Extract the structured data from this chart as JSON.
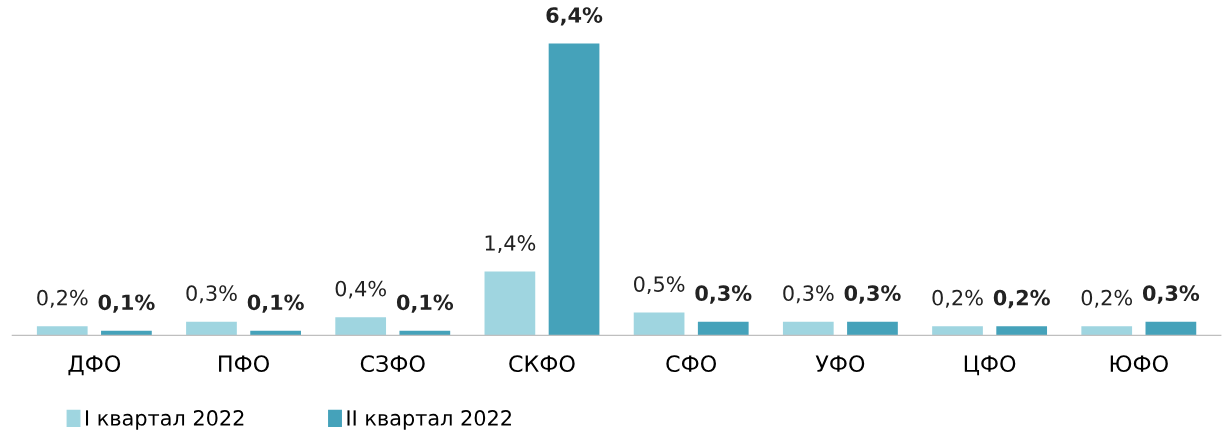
{
  "chart_data": {
    "type": "bar",
    "categories": [
      "ДФО",
      "ПФО",
      "СЗФО",
      "СКФО",
      "СФО",
      "УФО",
      "ЦФО",
      "ЮФО"
    ],
    "series": [
      {
        "name": "I квартал 2022",
        "color": "#9fd5e0",
        "values": [
          0.2,
          0.3,
          0.4,
          1.4,
          0.5,
          0.3,
          0.2,
          0.2
        ],
        "value_labels": [
          "0,2%",
          "0,3%",
          "0,4%",
          "1,4%",
          "0,5%",
          "0,3%",
          "0,2%",
          "0,2%"
        ]
      },
      {
        "name": "II квартал 2022",
        "color": "#45a2ba",
        "values": [
          0.1,
          0.1,
          0.1,
          6.4,
          0.3,
          0.3,
          0.2,
          0.3
        ],
        "value_labels": [
          "0,1%",
          "0,1%",
          "0,1%",
          "6,4%",
          "0,3%",
          "0,3%",
          "0,2%",
          "0,3%"
        ]
      }
    ],
    "legend": "bottom left",
    "grid": false
  }
}
